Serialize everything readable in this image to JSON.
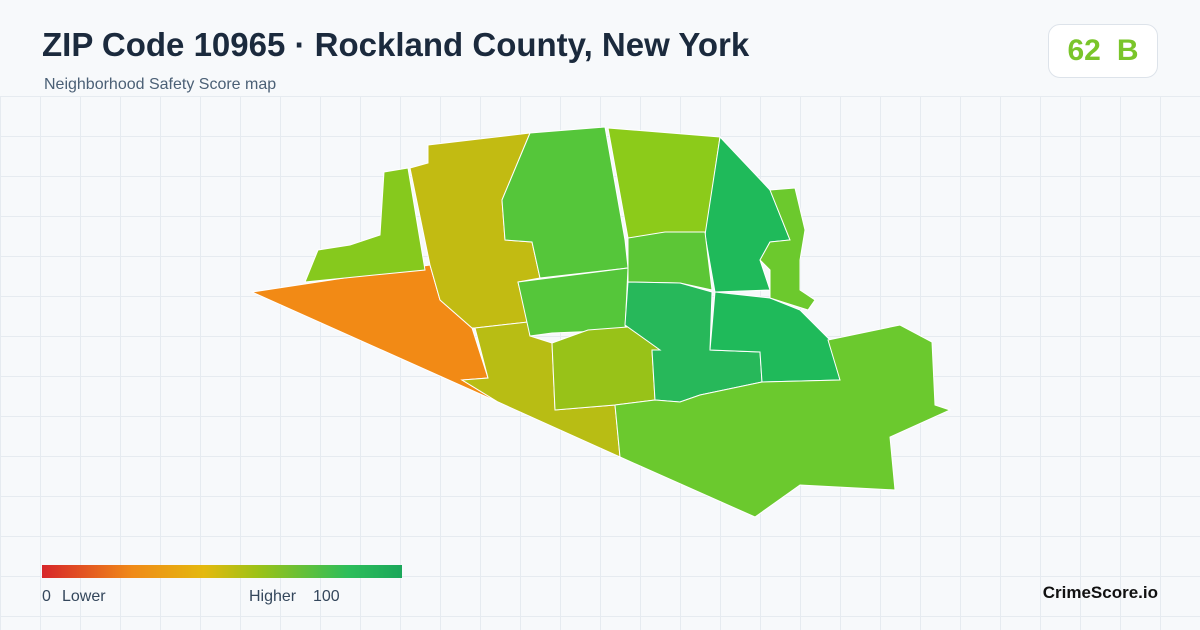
{
  "header": {
    "title": "ZIP Code 10965 · Rockland County, New York",
    "subtitle": "Neighborhood Safety Score map"
  },
  "score": {
    "value": "62",
    "grade": "B"
  },
  "legend": {
    "min": "0",
    "min_label": "Lower",
    "max_label": "Higher",
    "max": "100"
  },
  "brand": "CrimeScore.io"
}
